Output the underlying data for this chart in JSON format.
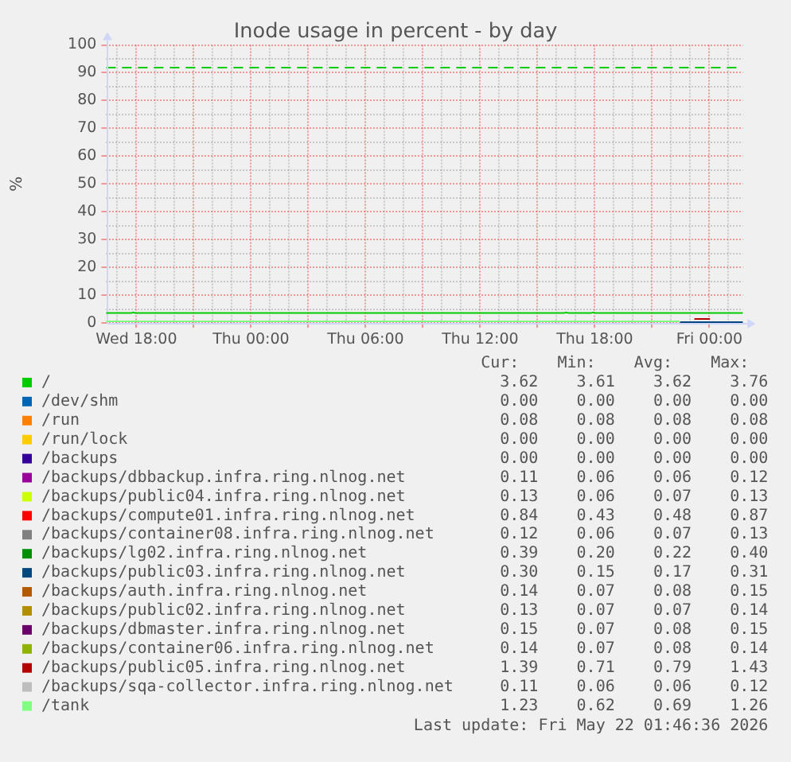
{
  "chart_data": {
    "type": "line",
    "title": "Inode usage in percent - by day",
    "ylabel": "%",
    "x": [
      "2026-05-20T16:25",
      "2026-05-20T17:45",
      "2026-05-20T17:50",
      "2026-05-20T17:55",
      "2026-05-21T16:25",
      "2026-05-21T16:30",
      "2026-05-21T16:35",
      "2026-05-21T17:50",
      "2026-05-21T17:55",
      "2026-05-21T18:00",
      "2026-05-21T22:25",
      "2026-05-21T22:30",
      "2026-05-22T01:45"
    ],
    "xlim": [
      "2026-05-20T16:25",
      "2026-05-22T01:45"
    ],
    "xticks": [
      {
        "value": "2026-05-20T17:00",
        "label": null
      },
      {
        "value": "2026-05-20T18:00",
        "label": "Wed 18:00"
      },
      {
        "value": "2026-05-20T19:00",
        "label": null
      },
      {
        "value": "2026-05-20T20:00",
        "label": null
      },
      {
        "value": "2026-05-20T21:00",
        "label": null
      },
      {
        "value": "2026-05-20T22:00",
        "label": null
      },
      {
        "value": "2026-05-20T23:00",
        "label": null
      },
      {
        "value": "2026-05-21T00:00",
        "label": "Thu 00:00"
      },
      {
        "value": "2026-05-21T01:00",
        "label": null
      },
      {
        "value": "2026-05-21T02:00",
        "label": null
      },
      {
        "value": "2026-05-21T03:00",
        "label": null
      },
      {
        "value": "2026-05-21T04:00",
        "label": null
      },
      {
        "value": "2026-05-21T05:00",
        "label": null
      },
      {
        "value": "2026-05-21T06:00",
        "label": "Thu 06:00"
      },
      {
        "value": "2026-05-21T07:00",
        "label": null
      },
      {
        "value": "2026-05-21T08:00",
        "label": null
      },
      {
        "value": "2026-05-21T09:00",
        "label": null
      },
      {
        "value": "2026-05-21T10:00",
        "label": null
      },
      {
        "value": "2026-05-21T11:00",
        "label": null
      },
      {
        "value": "2026-05-21T12:00",
        "label": "Thu 12:00"
      },
      {
        "value": "2026-05-21T13:00",
        "label": null
      },
      {
        "value": "2026-05-21T14:00",
        "label": null
      },
      {
        "value": "2026-05-21T15:00",
        "label": null
      },
      {
        "value": "2026-05-21T16:00",
        "label": null
      },
      {
        "value": "2026-05-21T17:00",
        "label": null
      },
      {
        "value": "2026-05-21T18:00",
        "label": "Thu 18:00"
      },
      {
        "value": "2026-05-21T19:00",
        "label": null
      },
      {
        "value": "2026-05-21T20:00",
        "label": null
      },
      {
        "value": "2026-05-21T21:00",
        "label": null
      },
      {
        "value": "2026-05-21T22:00",
        "label": null
      },
      {
        "value": "2026-05-21T23:00",
        "label": null
      },
      {
        "value": "2026-05-22T00:00",
        "label": "Fri 00:00"
      },
      {
        "value": "2026-05-22T01:00",
        "label": null
      }
    ],
    "ylim": [
      0,
      100
    ],
    "yticks": [
      0,
      {
        "value": 5,
        "label": null
      },
      10,
      {
        "value": 15,
        "label": null
      },
      20,
      {
        "value": 25,
        "label": null
      },
      30,
      {
        "value": 35,
        "label": null
      },
      40,
      {
        "value": 45,
        "label": null
      },
      50,
      {
        "value": 55,
        "label": null
      },
      60,
      {
        "value": 65,
        "label": null
      },
      70,
      {
        "value": 75,
        "label": null
      },
      80,
      {
        "value": 85,
        "label": null
      },
      90,
      {
        "value": 95,
        "label": null
      },
      100
    ],
    "grid": true,
    "legend": "bottom",
    "ref_lines": [
      {
        "axis": "y",
        "value": 92,
        "color": "#00cc00",
        "line_style": "dashed"
      }
    ],
    "series": [
      {
        "name": "/",
        "color": "#00cc00",
        "values": [
          3.6,
          3.6,
          3.8,
          3.6,
          3.6,
          3.8,
          3.6,
          3.6,
          3.8,
          3.6,
          3.6,
          3.6,
          3.6
        ]
      },
      {
        "name": "/dev/shm",
        "color": "#0066b3",
        "values": [
          null,
          null,
          null,
          null,
          null,
          null,
          null,
          null,
          null,
          null,
          null,
          null,
          null
        ]
      },
      {
        "name": "/run",
        "color": "#ff8000",
        "values": [
          null,
          null,
          null,
          null,
          null,
          null,
          null,
          null,
          null,
          null,
          null,
          null,
          null
        ]
      },
      {
        "name": "/run/lock",
        "color": "#ffcc00",
        "values": [
          null,
          null,
          null,
          null,
          null,
          null,
          null,
          null,
          null,
          null,
          null,
          null,
          null
        ]
      },
      {
        "name": "/backups",
        "color": "#330099",
        "values": [
          null,
          null,
          null,
          null,
          null,
          null,
          null,
          null,
          null,
          null,
          null,
          null,
          null
        ]
      },
      {
        "name": "/backups/dbbackup.infra.ring.nlnog.net",
        "color": "#990099",
        "values": [
          null,
          null,
          null,
          null,
          null,
          null,
          null,
          null,
          null,
          null,
          null,
          null,
          null
        ]
      },
      {
        "name": "/backups/public04.infra.ring.nlnog.net",
        "color": "#ccff00",
        "values": [
          null,
          null,
          null,
          null,
          null,
          null,
          null,
          null,
          null,
          null,
          null,
          null,
          null
        ]
      },
      {
        "name": "/backups/compute01.infra.ring.nlnog.net",
        "color": "#ff0000",
        "values": [
          null,
          null,
          null,
          null,
          null,
          null,
          null,
          null,
          null,
          null,
          null,
          null,
          null
        ]
      },
      {
        "name": "/backups/container08.infra.ring.nlnog.net",
        "color": "#808080",
        "values": [
          null,
          null,
          null,
          null,
          null,
          null,
          null,
          null,
          null,
          null,
          null,
          null,
          null
        ]
      },
      {
        "name": "/backups/lg02.infra.ring.nlnog.net",
        "color": "#008f00",
        "values": [
          null,
          null,
          null,
          null,
          null,
          null,
          null,
          null,
          null,
          null,
          null,
          null,
          null
        ]
      },
      {
        "name": "/backups/public03.infra.ring.nlnog.net",
        "color": "#00487d",
        "x": [
          "2026-05-21T22:30",
          "2026-05-22T01:45"
        ],
        "values": [
          0.3,
          0.3
        ]
      },
      {
        "name": "/backups/auth.infra.ring.nlnog.net",
        "color": "#b35a00",
        "values": [
          null,
          null,
          null,
          null,
          null,
          null,
          null,
          null,
          null,
          null,
          null,
          null,
          null
        ]
      },
      {
        "name": "/backups/public02.infra.ring.nlnog.net",
        "color": "#b38f00",
        "values": [
          null,
          null,
          null,
          null,
          null,
          null,
          null,
          null,
          null,
          null,
          null,
          null,
          null
        ]
      },
      {
        "name": "/backups/dbmaster.infra.ring.nlnog.net",
        "color": "#6b006b",
        "values": [
          null,
          null,
          null,
          null,
          null,
          null,
          null,
          null,
          null,
          null,
          null,
          null,
          null
        ]
      },
      {
        "name": "/backups/container06.infra.ring.nlnog.net",
        "color": "#8fb300",
        "values": [
          null,
          null,
          null,
          null,
          null,
          null,
          null,
          null,
          null,
          null,
          null,
          null,
          null
        ]
      },
      {
        "name": "/backups/public05.infra.ring.nlnog.net",
        "color": "#b30000",
        "x": [
          "2026-05-21T23:15",
          "2026-05-22T00:00"
        ],
        "values": [
          1.4,
          1.4
        ]
      },
      {
        "name": "/backups/sqa-collector.infra.ring.nlnog.net",
        "color": "#bebebe",
        "values": [
          null,
          null,
          null,
          null,
          null,
          null,
          null,
          null,
          null,
          null,
          null,
          null,
          null
        ]
      },
      {
        "name": "/tank",
        "color": "#80ff80",
        "values": [
          0.6,
          0.6,
          0.6,
          0.6,
          0.6,
          0.6,
          0.6,
          0.6,
          0.6,
          0.6,
          0.6,
          null,
          null
        ]
      }
    ],
    "annotations": [
      "Cur: Min: Avg: Max:",
      "3.62 3.61 3.62 3.76",
      "0.00 0.00 0.00 0.00",
      "0.08 0.08 0.08 0.08",
      "0.00 0.00 0.00 0.00",
      "0.00 0.00 0.00 0.00",
      "0.11 0.06 0.06 0.12",
      "0.13 0.06 0.07 0.13",
      "0.84 0.43 0.48 0.87",
      "0.12 0.06 0.07 0.13",
      "0.39 0.20 0.22 0.40",
      "0.30 0.15 0.17 0.31",
      "0.14 0.07 0.08 0.15",
      "0.13 0.07 0.07 0.14",
      "0.15 0.07 0.08 0.15",
      "0.14 0.07 0.08 0.14",
      "1.39 0.71 0.79 1.43",
      "0.11 0.06 0.06 0.12",
      "1.23 0.62 0.69 1.26",
      "Last update: Fri May 22 01:46:36 2026"
    ]
  }
}
